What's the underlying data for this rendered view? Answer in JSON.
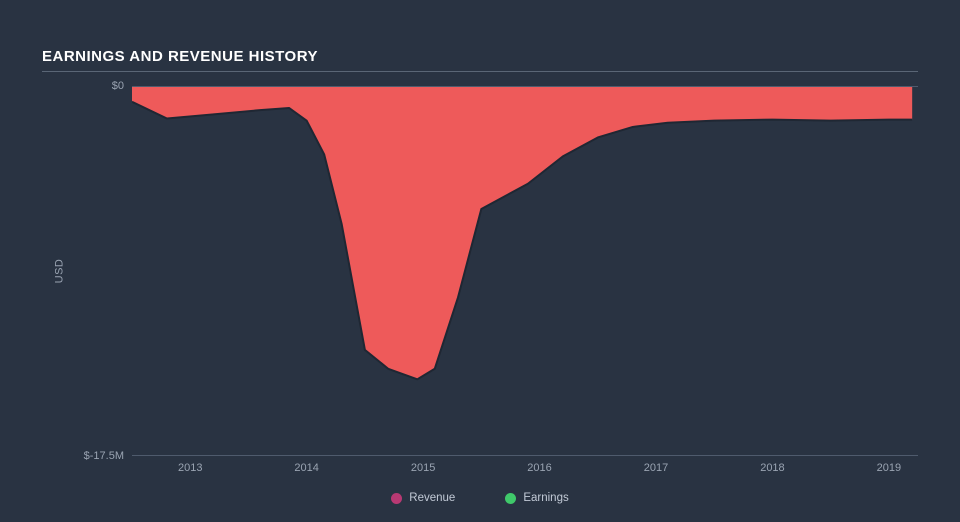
{
  "chart": {
    "type": "area",
    "title": "EARNINGS AND REVENUE HISTORY",
    "background_color": "#293342",
    "grid_color": "#4f5b6d",
    "text_color": "#9aa4b2",
    "title_color": "#ffffff",
    "title_fontsize": 15,
    "label_fontsize": 11,
    "ylabel": "USD",
    "ylim": [
      -17500000,
      0
    ],
    "yticks": [
      {
        "value": 0,
        "label": "$0"
      },
      {
        "value": -17500000,
        "label": "$-17.5M"
      }
    ],
    "xlim": [
      2012.5,
      2019.25
    ],
    "xticks": [
      {
        "value": 2013,
        "label": "2013"
      },
      {
        "value": 2014,
        "label": "2014"
      },
      {
        "value": 2015,
        "label": "2015"
      },
      {
        "value": 2016,
        "label": "2016"
      },
      {
        "value": 2017,
        "label": "2017"
      },
      {
        "value": 2018,
        "label": "2018"
      },
      {
        "value": 2019,
        "label": "2019"
      }
    ],
    "series": [
      {
        "name": "Revenue",
        "legend_color": "#b83973",
        "fill_color": "#ee5a5a",
        "fill_opacity": 1.0,
        "stroke_color": "#1f2733",
        "stroke_width": 2,
        "points": [
          {
            "x": 2012.5,
            "y": -700000
          },
          {
            "x": 2012.8,
            "y": -1500000
          },
          {
            "x": 2013.2,
            "y": -1300000
          },
          {
            "x": 2013.6,
            "y": -1100000
          },
          {
            "x": 2013.85,
            "y": -1000000
          },
          {
            "x": 2014.0,
            "y": -1600000
          },
          {
            "x": 2014.15,
            "y": -3200000
          },
          {
            "x": 2014.3,
            "y": -6500000
          },
          {
            "x": 2014.5,
            "y": -12500000
          },
          {
            "x": 2014.7,
            "y": -13400000
          },
          {
            "x": 2014.95,
            "y": -13900000
          },
          {
            "x": 2015.1,
            "y": -13400000
          },
          {
            "x": 2015.3,
            "y": -10000000
          },
          {
            "x": 2015.5,
            "y": -5800000
          },
          {
            "x": 2015.7,
            "y": -5200000
          },
          {
            "x": 2015.9,
            "y": -4600000
          },
          {
            "x": 2016.2,
            "y": -3300000
          },
          {
            "x": 2016.5,
            "y": -2400000
          },
          {
            "x": 2016.8,
            "y": -1900000
          },
          {
            "x": 2017.1,
            "y": -1700000
          },
          {
            "x": 2017.5,
            "y": -1600000
          },
          {
            "x": 2018.0,
            "y": -1550000
          },
          {
            "x": 2018.5,
            "y": -1600000
          },
          {
            "x": 2019.0,
            "y": -1550000
          },
          {
            "x": 2019.2,
            "y": -1550000
          }
        ]
      },
      {
        "name": "Earnings",
        "legend_color": "#3fc96a",
        "fill_color": "#3fc96a",
        "fill_opacity": 0.0,
        "points": []
      }
    ],
    "legend": {
      "position": "bottom-center",
      "items": [
        {
          "label": "Revenue",
          "color": "#b83973"
        },
        {
          "label": "Earnings",
          "color": "#3fc96a"
        }
      ]
    }
  }
}
